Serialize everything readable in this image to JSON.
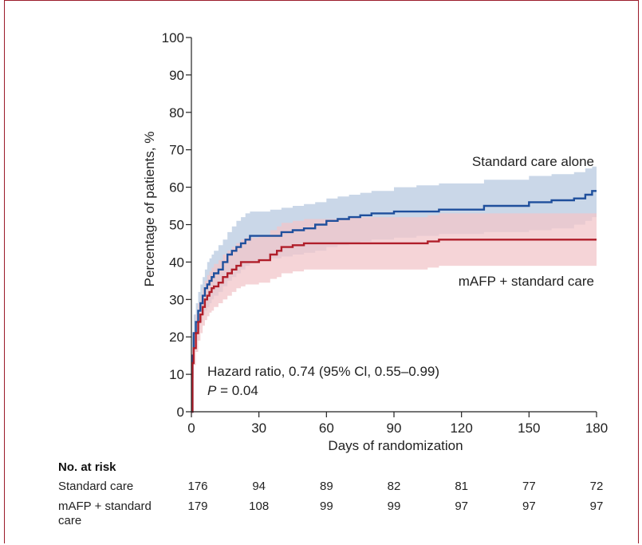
{
  "chart_data": {
    "type": "line",
    "title": "",
    "xlabel": "Days of randomization",
    "ylabel": "Percentage of patients, %",
    "xlim": [
      0,
      180
    ],
    "ylim": [
      0,
      100
    ],
    "xticks": [
      0,
      30,
      60,
      90,
      120,
      150,
      180
    ],
    "yticks": [
      0,
      10,
      20,
      30,
      40,
      50,
      60,
      70,
      80,
      90,
      100
    ],
    "grid": false,
    "series": [
      {
        "name": "Standard care alone",
        "color": "#1f4f9c",
        "band_color": "#b8c9e0",
        "x": [
          0,
          0.5,
          1,
          2,
          3,
          4,
          5,
          6,
          7,
          8,
          9,
          10,
          12,
          14,
          16,
          18,
          20,
          22,
          24,
          26,
          30,
          35,
          40,
          45,
          50,
          55,
          60,
          65,
          70,
          75,
          80,
          90,
          100,
          110,
          120,
          130,
          140,
          150,
          160,
          170,
          175,
          178,
          180
        ],
        "y": [
          0,
          15,
          21,
          24,
          27,
          29,
          31,
          33,
          34,
          35,
          36,
          37,
          38,
          40,
          42,
          43,
          44,
          45,
          46,
          47,
          47,
          47,
          48,
          48.5,
          49,
          50,
          51,
          51.5,
          52,
          52.5,
          53,
          53.5,
          53.5,
          54,
          54,
          55,
          55,
          56,
          56.5,
          57,
          58,
          59,
          59
        ],
        "lower": [
          0,
          10,
          16,
          19,
          22,
          24,
          26,
          27,
          28,
          29,
          30,
          31,
          32,
          33.5,
          35,
          36,
          37,
          38,
          39,
          40,
          40.5,
          41,
          41.5,
          42,
          42.5,
          43,
          44,
          44.5,
          45,
          45.5,
          46,
          46.5,
          47,
          47.5,
          47.5,
          48,
          48,
          48.5,
          49,
          50,
          51,
          52,
          52
        ],
        "upper": [
          0,
          20,
          26,
          29,
          32,
          34,
          36,
          38,
          40,
          41,
          42,
          43,
          44.5,
          46,
          48,
          49.5,
          51,
          52,
          53,
          53.5,
          53.5,
          54,
          54.5,
          55,
          55.5,
          56,
          57,
          57.5,
          58,
          58.5,
          59,
          60,
          60.5,
          61,
          61,
          62,
          62,
          63,
          63.5,
          64,
          65,
          65.5,
          65.5
        ]
      },
      {
        "name": "mAFP + standard care",
        "color": "#b01e2a",
        "band_color": "#f2c5c9",
        "x": [
          0,
          0.5,
          1,
          2,
          3,
          4,
          5,
          6,
          7,
          8,
          9,
          10,
          12,
          14,
          16,
          18,
          20,
          22,
          24,
          30,
          35,
          38,
          40,
          45,
          50,
          60,
          70,
          80,
          90,
          100,
          105,
          110,
          120,
          130,
          140,
          150,
          160,
          170,
          180
        ],
        "y": [
          0,
          13,
          17,
          21,
          24,
          26,
          28,
          30,
          31,
          32,
          33,
          33.5,
          34.5,
          36,
          37,
          38,
          39,
          40,
          40,
          40.5,
          42,
          43,
          44,
          44.5,
          45,
          45,
          45,
          45,
          45,
          45,
          45.5,
          46,
          46,
          46,
          46,
          46,
          46,
          46,
          46
        ],
        "lower": [
          0,
          9,
          12.5,
          16,
          19,
          21,
          23,
          24.5,
          25.5,
          26.5,
          27,
          28,
          29,
          30,
          31,
          32,
          33,
          33.5,
          34,
          34.5,
          35.5,
          36,
          37,
          37.5,
          38,
          38,
          38,
          38,
          38,
          38,
          38.5,
          39,
          39,
          39,
          39,
          39,
          39,
          39,
          39
        ],
        "upper": [
          0,
          17,
          21.5,
          26,
          29,
          31,
          33,
          35,
          36.5,
          37.5,
          38.5,
          39.5,
          40.5,
          42,
          43,
          44,
          45,
          46,
          46.5,
          47,
          48.5,
          49.5,
          50.5,
          51,
          51.5,
          51.5,
          52,
          52,
          52,
          52,
          52.5,
          53,
          53,
          53,
          53,
          53,
          53,
          53,
          53
        ]
      }
    ],
    "annotations": {
      "hazard": "Hazard ratio, 0.74 (95% Cl, 0.55–0.99)",
      "p_letter": "P",
      "p_value": " = 0.04"
    }
  },
  "risk_table": {
    "title": "No. at risk",
    "rows": [
      {
        "label": [
          "Standard care"
        ],
        "values": [
          "176",
          "94",
          "89",
          "82",
          "81",
          "77",
          "72"
        ]
      },
      {
        "label": [
          "mAFP + standard",
          "care"
        ],
        "values": [
          "179",
          "108",
          "99",
          "99",
          "97",
          "97",
          "97"
        ]
      }
    ]
  }
}
